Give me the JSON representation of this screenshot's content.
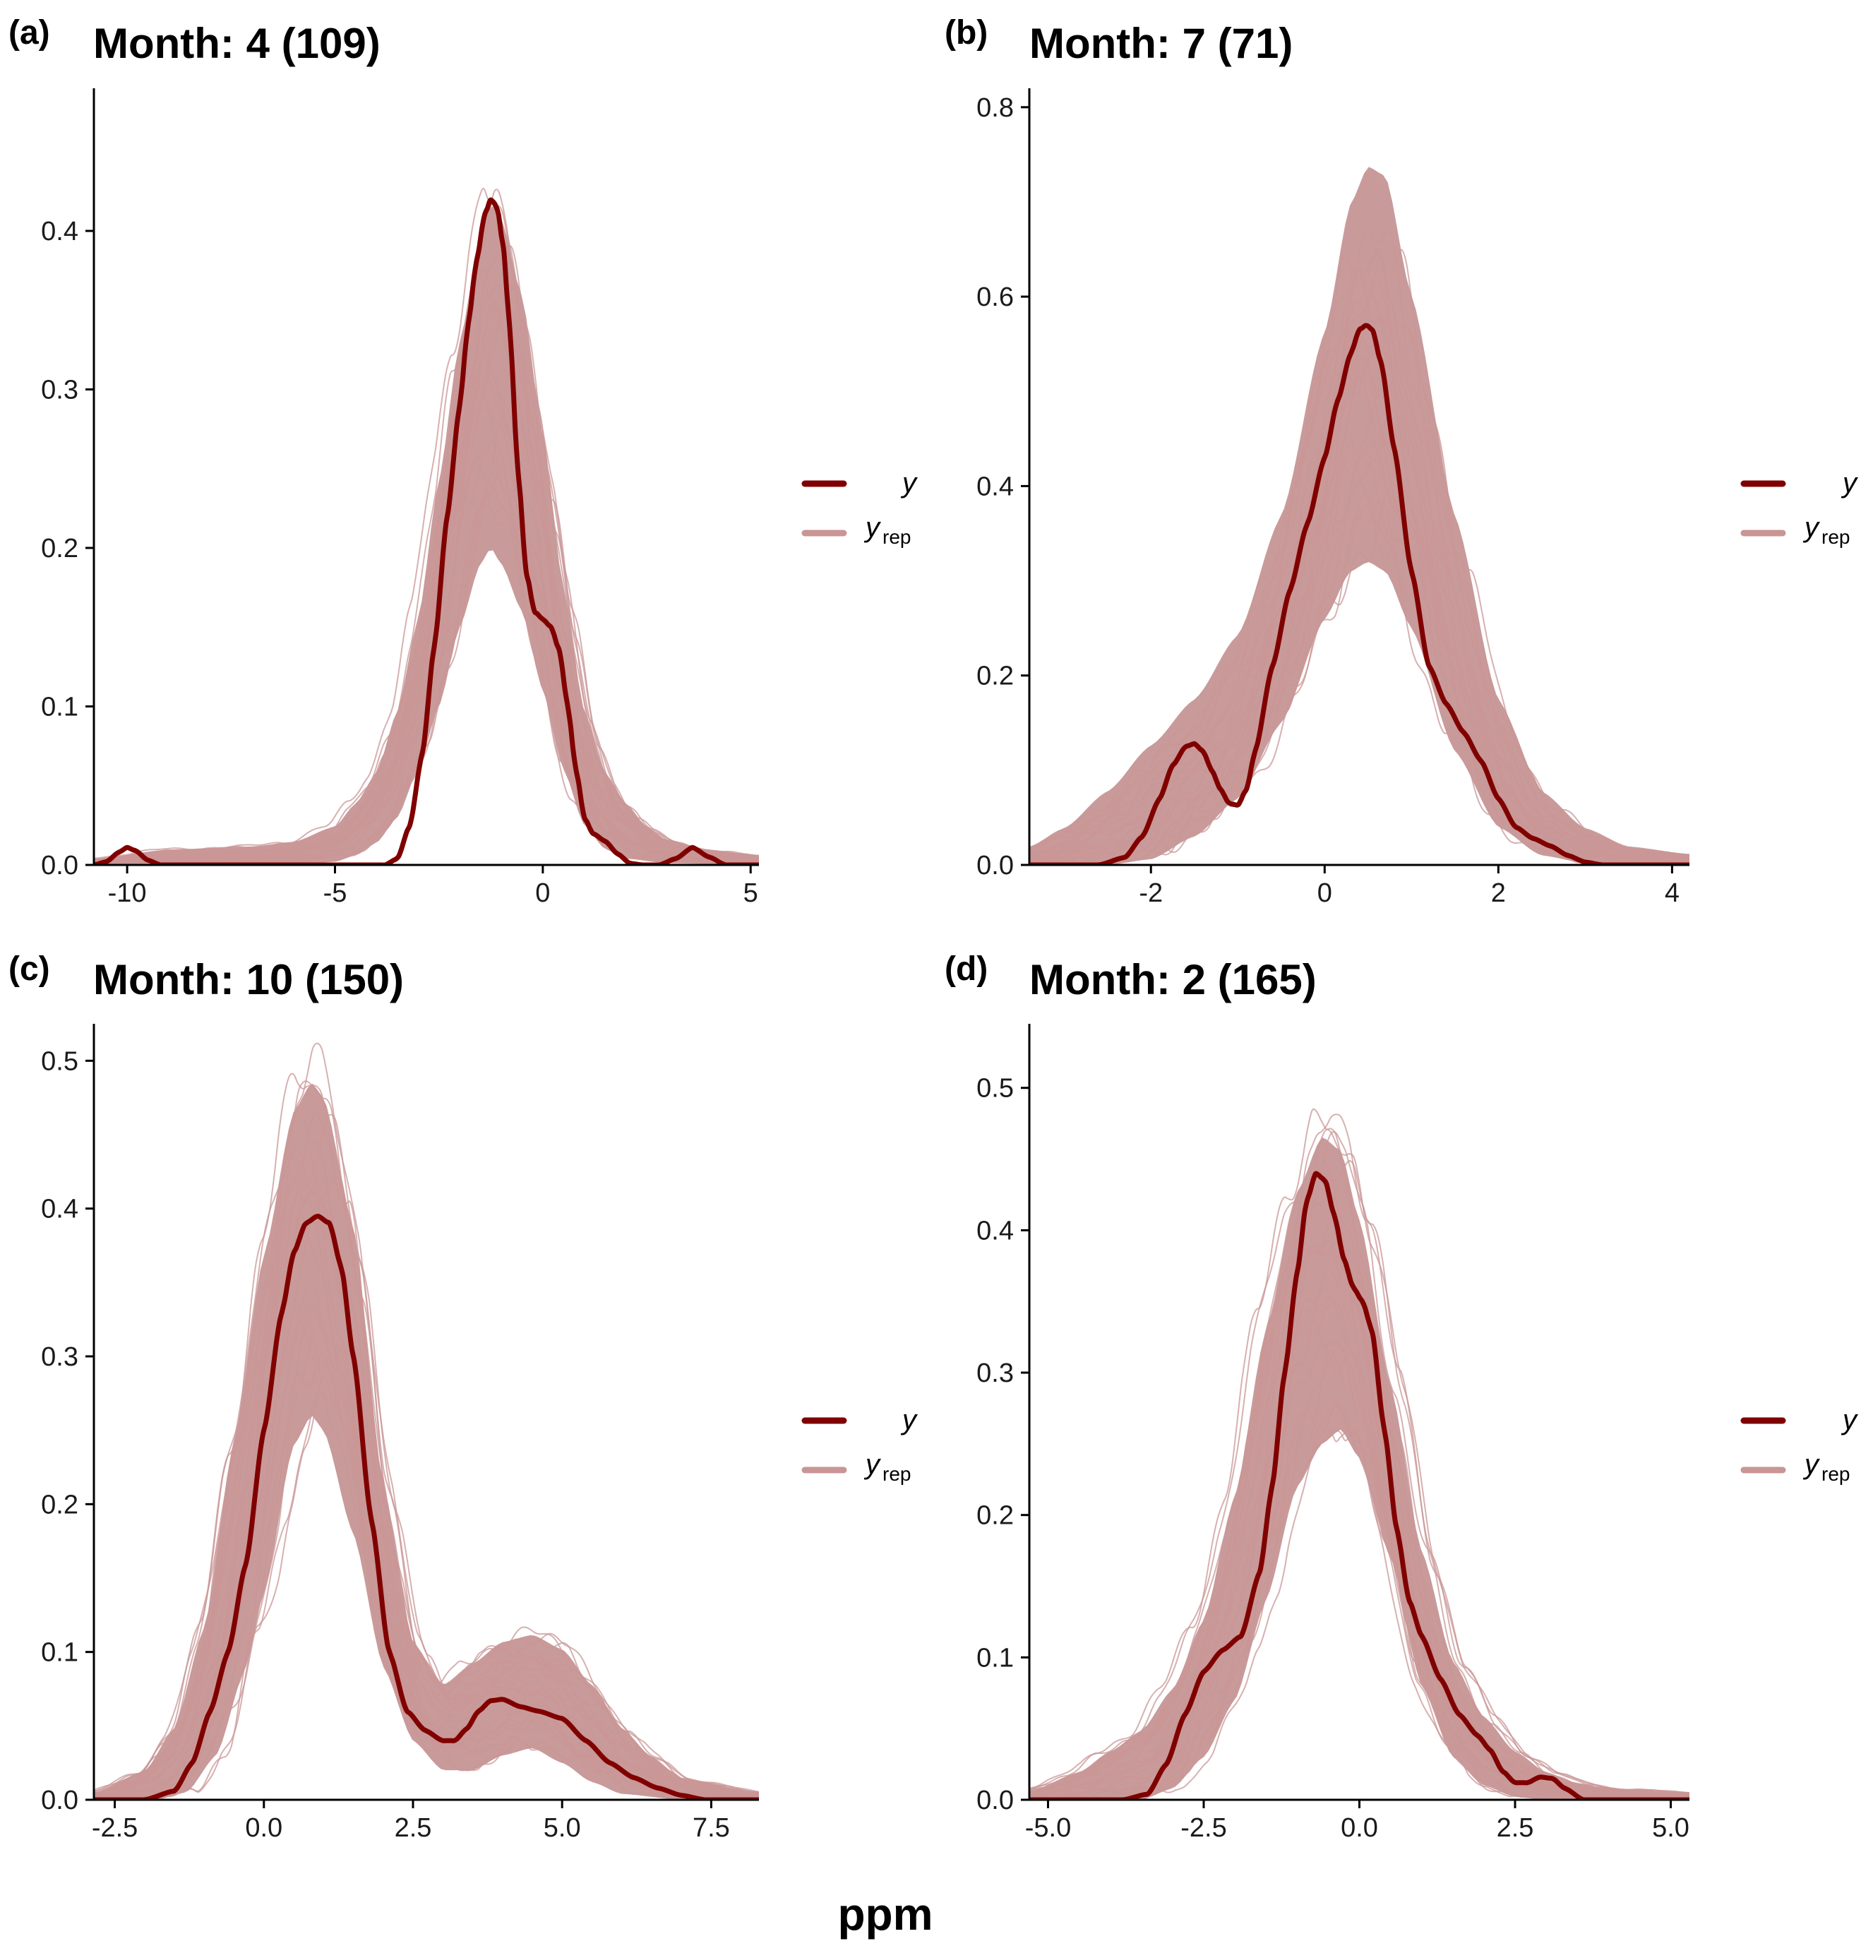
{
  "figure": {
    "xlabel": "ppm",
    "legend": {
      "y_label": "y",
      "yrep_label": "y",
      "yrep_sub": "rep"
    },
    "colors": {
      "y": "#800000",
      "yrep": "#c99595",
      "yrep_band": "#c99a9a"
    }
  },
  "chart_data": [
    {
      "type": "area",
      "letter": "(a)",
      "title": "Month: 4 (109)",
      "xlabel": "",
      "ylabel": "",
      "xlim": [
        -10.8,
        5.2
      ],
      "ylim": [
        0,
        0.49
      ],
      "xticks": [
        -10,
        -5,
        0,
        5
      ],
      "xtick_labels": [
        "-10",
        "-5",
        "0",
        "5"
      ],
      "yticks": [
        0.0,
        0.1,
        0.2,
        0.3,
        0.4
      ],
      "ytick_labels": [
        "0.0",
        "0.1",
        "0.2",
        "0.3",
        "0.4"
      ],
      "series": [
        {
          "name": "y",
          "x": [
            -10.8,
            -10.5,
            -10.2,
            -10.0,
            -9.8,
            -9.5,
            -9.2,
            -8,
            -6,
            -4.8,
            -4.2,
            -3.8,
            -3.5,
            -3.2,
            -2.9,
            -2.6,
            -2.3,
            -2.0,
            -1.8,
            -1.6,
            -1.4,
            -1.25,
            -1.1,
            -0.95,
            -0.8,
            -0.6,
            -0.4,
            -0.2,
            0.0,
            0.2,
            0.4,
            0.6,
            0.8,
            1.0,
            1.2,
            1.5,
            1.8,
            2.1,
            2.4,
            2.8,
            3.2,
            3.6,
            4.0,
            4.4,
            5.2
          ],
          "y": [
            0.0,
            0.002,
            0.008,
            0.011,
            0.009,
            0.003,
            0.0,
            0.0,
            0.0,
            0.0,
            0.0,
            0.0,
            0.004,
            0.025,
            0.07,
            0.14,
            0.22,
            0.29,
            0.34,
            0.38,
            0.41,
            0.42,
            0.415,
            0.39,
            0.34,
            0.25,
            0.185,
            0.16,
            0.155,
            0.15,
            0.135,
            0.1,
            0.06,
            0.03,
            0.02,
            0.015,
            0.007,
            0.001,
            0.0,
            0.0,
            0.004,
            0.011,
            0.005,
            0.0,
            0.0
          ]
        },
        {
          "name": "yrep-upper",
          "x": [
            -10.8,
            -9,
            -7,
            -6,
            -5,
            -4.5,
            -4,
            -3.5,
            -3,
            -2.5,
            -2,
            -1.5,
            -1.25,
            -1.0,
            -0.5,
            0,
            0.5,
            1,
            1.5,
            2,
            2.5,
            3,
            4,
            5.2
          ],
          "y": [
            0.004,
            0.01,
            0.012,
            0.015,
            0.025,
            0.04,
            0.06,
            0.1,
            0.16,
            0.25,
            0.34,
            0.41,
            0.43,
            0.42,
            0.37,
            0.28,
            0.18,
            0.1,
            0.06,
            0.04,
            0.025,
            0.016,
            0.01,
            0.006
          ]
        },
        {
          "name": "yrep-lower",
          "x": [
            -10.8,
            -6,
            -5,
            -4.5,
            -4,
            -3.5,
            -3,
            -2.5,
            -2,
            -1.5,
            -1.25,
            -1.0,
            -0.5,
            0,
            0.5,
            1,
            1.5,
            2,
            3,
            5.2
          ],
          "y": [
            0.0,
            0.0,
            0.002,
            0.006,
            0.014,
            0.03,
            0.06,
            0.1,
            0.15,
            0.19,
            0.2,
            0.19,
            0.16,
            0.11,
            0.06,
            0.025,
            0.01,
            0.004,
            0.001,
            0.0
          ]
        }
      ]
    },
    {
      "type": "area",
      "letter": "(b)",
      "title": "Month: 7 (71)",
      "xlabel": "",
      "ylabel": "",
      "xlim": [
        -3.4,
        4.2
      ],
      "ylim": [
        0,
        0.82
      ],
      "xticks": [
        -2,
        0,
        2,
        4
      ],
      "xtick_labels": [
        "-2",
        "0",
        "2",
        "4"
      ],
      "yticks": [
        0.0,
        0.2,
        0.4,
        0.6,
        0.8
      ],
      "ytick_labels": [
        "0.0",
        "0.2",
        "0.4",
        "0.6",
        "0.8"
      ],
      "series": [
        {
          "name": "y",
          "x": [
            -3.4,
            -2.6,
            -2.3,
            -2.1,
            -1.9,
            -1.75,
            -1.6,
            -1.5,
            -1.4,
            -1.3,
            -1.2,
            -1.1,
            -1.0,
            -0.9,
            -0.8,
            -0.6,
            -0.4,
            -0.2,
            0.0,
            0.15,
            0.3,
            0.4,
            0.48,
            0.55,
            0.65,
            0.8,
            1.0,
            1.2,
            1.4,
            1.6,
            1.8,
            2.0,
            2.2,
            2.4,
            2.6,
            2.8,
            3.0,
            3.2,
            4.2
          ],
          "y": [
            0.0,
            0.0,
            0.008,
            0.03,
            0.07,
            0.105,
            0.125,
            0.128,
            0.12,
            0.1,
            0.08,
            0.065,
            0.063,
            0.08,
            0.12,
            0.21,
            0.29,
            0.36,
            0.43,
            0.49,
            0.54,
            0.565,
            0.57,
            0.565,
            0.53,
            0.44,
            0.31,
            0.21,
            0.17,
            0.14,
            0.11,
            0.07,
            0.04,
            0.028,
            0.02,
            0.01,
            0.003,
            0.0,
            0.0
          ]
        },
        {
          "name": "yrep-upper",
          "x": [
            -3.4,
            -3,
            -2.5,
            -2,
            -1.5,
            -1,
            -0.5,
            0,
            0.3,
            0.5,
            0.7,
            1,
            1.5,
            2,
            2.5,
            3,
            3.5,
            4.2
          ],
          "y": [
            0.02,
            0.04,
            0.08,
            0.13,
            0.18,
            0.25,
            0.38,
            0.58,
            0.72,
            0.76,
            0.75,
            0.62,
            0.38,
            0.18,
            0.08,
            0.04,
            0.02,
            0.012
          ]
        },
        {
          "name": "yrep-lower",
          "x": [
            -3.4,
            -2.5,
            -2,
            -1.5,
            -1,
            -0.5,
            0,
            0.3,
            0.5,
            0.7,
            1,
            1.5,
            2,
            2.5,
            3,
            4.2
          ],
          "y": [
            0.0,
            0.0,
            0.006,
            0.03,
            0.07,
            0.15,
            0.26,
            0.31,
            0.32,
            0.31,
            0.25,
            0.12,
            0.04,
            0.01,
            0.002,
            0.0
          ]
        }
      ]
    },
    {
      "type": "area",
      "letter": "(c)",
      "title": "Month: 10 (150)",
      "xlabel": "",
      "ylabel": "",
      "xlim": [
        -2.85,
        8.3
      ],
      "ylim": [
        0,
        0.525
      ],
      "xticks": [
        -2.5,
        0.0,
        2.5,
        5.0,
        7.5
      ],
      "xtick_labels": [
        "-2.5",
        "0.0",
        "2.5",
        "5.0",
        "7.5"
      ],
      "yticks": [
        0.0,
        0.1,
        0.2,
        0.3,
        0.4,
        0.5
      ],
      "ytick_labels": [
        "0.0",
        "0.1",
        "0.2",
        "0.3",
        "0.4",
        "0.5"
      ],
      "series": [
        {
          "name": "y",
          "x": [
            -2.85,
            -2.0,
            -1.5,
            -1.2,
            -0.9,
            -0.6,
            -0.3,
            0.0,
            0.3,
            0.5,
            0.7,
            0.9,
            1.1,
            1.3,
            1.5,
            1.8,
            2.1,
            2.4,
            2.7,
            3.0,
            3.2,
            3.4,
            3.6,
            3.8,
            4.0,
            4.3,
            4.6,
            5.0,
            5.4,
            5.8,
            6.2,
            6.6,
            7.0,
            7.4,
            8.3
          ],
          "y": [
            0.0,
            0.0,
            0.006,
            0.025,
            0.06,
            0.1,
            0.16,
            0.25,
            0.33,
            0.37,
            0.39,
            0.395,
            0.39,
            0.36,
            0.3,
            0.19,
            0.1,
            0.06,
            0.047,
            0.04,
            0.04,
            0.048,
            0.06,
            0.067,
            0.068,
            0.063,
            0.06,
            0.055,
            0.04,
            0.025,
            0.015,
            0.008,
            0.003,
            0.0,
            0.0
          ]
        },
        {
          "name": "yrep-upper",
          "x": [
            -2.85,
            -2,
            -1.5,
            -1,
            -0.5,
            0,
            0.5,
            0.8,
            1,
            1.5,
            2,
            2.5,
            3,
            3.5,
            4,
            4.5,
            5,
            5.5,
            6,
            6.5,
            7,
            8.3
          ],
          "y": [
            0.005,
            0.02,
            0.05,
            0.12,
            0.25,
            0.38,
            0.48,
            0.5,
            0.49,
            0.4,
            0.22,
            0.11,
            0.08,
            0.095,
            0.11,
            0.115,
            0.105,
            0.08,
            0.05,
            0.03,
            0.015,
            0.005
          ]
        },
        {
          "name": "yrep-lower",
          "x": [
            -2.85,
            -1.8,
            -1.3,
            -0.8,
            -0.3,
            0,
            0.5,
            0.8,
            1,
            1.5,
            2,
            2.5,
            3,
            3.5,
            4,
            4.5,
            5,
            5.5,
            6,
            7,
            8.3
          ],
          "y": [
            0.0,
            0.0,
            0.005,
            0.03,
            0.09,
            0.14,
            0.24,
            0.26,
            0.25,
            0.18,
            0.09,
            0.04,
            0.02,
            0.02,
            0.03,
            0.035,
            0.025,
            0.012,
            0.004,
            0.0,
            0.0
          ]
        }
      ]
    },
    {
      "type": "area",
      "letter": "(d)",
      "title": "Month: 2 (165)",
      "xlabel": "",
      "ylabel": "",
      "xlim": [
        -5.3,
        5.3
      ],
      "ylim": [
        0,
        0.545
      ],
      "xticks": [
        -5.0,
        -2.5,
        0.0,
        2.5,
        5.0
      ],
      "xtick_labels": [
        "-5.0",
        "-2.5",
        "0.0",
        "2.5",
        "5.0"
      ],
      "yticks": [
        0.0,
        0.1,
        0.2,
        0.3,
        0.4,
        0.5
      ],
      "ytick_labels": [
        "0.0",
        "0.1",
        "0.2",
        "0.3",
        "0.4",
        "0.5"
      ],
      "series": [
        {
          "name": "y",
          "x": [
            -5.3,
            -3.8,
            -3.4,
            -3.1,
            -2.8,
            -2.5,
            -2.2,
            -1.9,
            -1.6,
            -1.4,
            -1.2,
            -1.0,
            -0.85,
            -0.7,
            -0.55,
            -0.4,
            -0.25,
            -0.1,
            0.05,
            0.2,
            0.4,
            0.6,
            0.8,
            1.0,
            1.3,
            1.6,
            1.9,
            2.1,
            2.3,
            2.5,
            2.7,
            2.9,
            3.1,
            3.3,
            3.6,
            5.3
          ],
          "y": [
            0.0,
            0.0,
            0.004,
            0.025,
            0.06,
            0.09,
            0.105,
            0.115,
            0.16,
            0.22,
            0.3,
            0.37,
            0.42,
            0.44,
            0.435,
            0.41,
            0.38,
            0.36,
            0.35,
            0.33,
            0.26,
            0.19,
            0.14,
            0.115,
            0.085,
            0.06,
            0.045,
            0.035,
            0.02,
            0.012,
            0.012,
            0.016,
            0.015,
            0.008,
            0.0,
            0.0
          ]
        },
        {
          "name": "yrep-upper",
          "x": [
            -5.3,
            -4.5,
            -4,
            -3.5,
            -3,
            -2.5,
            -2,
            -1.5,
            -1,
            -0.6,
            -0.3,
            0,
            0.5,
            1,
            1.5,
            2,
            2.5,
            3,
            3.5,
            4,
            5.3
          ],
          "y": [
            0.006,
            0.02,
            0.035,
            0.05,
            0.08,
            0.13,
            0.22,
            0.34,
            0.44,
            0.48,
            0.47,
            0.42,
            0.3,
            0.18,
            0.1,
            0.06,
            0.035,
            0.02,
            0.012,
            0.008,
            0.005
          ]
        },
        {
          "name": "yrep-lower",
          "x": [
            -5.3,
            -3.5,
            -3,
            -2.5,
            -2,
            -1.5,
            -1,
            -0.6,
            -0.3,
            0,
            0.5,
            1,
            1.5,
            2,
            2.5,
            3,
            5.3
          ],
          "y": [
            0.0,
            0.0,
            0.008,
            0.03,
            0.07,
            0.14,
            0.22,
            0.25,
            0.26,
            0.24,
            0.17,
            0.08,
            0.03,
            0.01,
            0.002,
            0.0,
            0.0
          ]
        }
      ]
    }
  ]
}
